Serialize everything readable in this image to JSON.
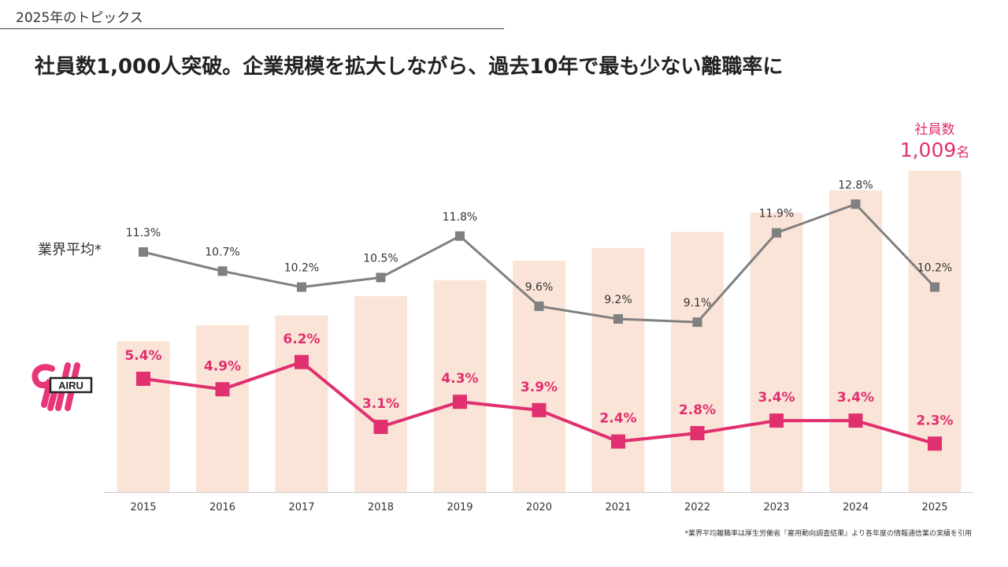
{
  "header": {
    "topic": "2025年のトピックス",
    "headline": "社員数1,000人突破。企業規模を拡大しながら、過去10年で最も少ない離職率に"
  },
  "footnote": "*業界平均離職率は厚生労働省『雇用動向調査結果』より各年度の情報通信業の実績を引用",
  "logo": {
    "text": "AIRU",
    "color": "#e8357a"
  },
  "colors": {
    "bar": "#fae4d7",
    "company_line": "#e0306f",
    "industry_line": "#808080",
    "axis": "#cccccc"
  },
  "chart_data": {
    "type": "bar+line",
    "categories": [
      "2015",
      "2016",
      "2017",
      "2018",
      "2019",
      "2020",
      "2021",
      "2022",
      "2023",
      "2024",
      "2025"
    ],
    "bar_series": {
      "name": "社員数",
      "values": [
        null,
        null,
        null,
        null,
        null,
        null,
        null,
        null,
        null,
        null,
        1009
      ],
      "relative_heights": [
        0.47,
        0.52,
        0.55,
        0.61,
        0.66,
        0.72,
        0.76,
        0.81,
        0.87,
        0.94,
        1.0
      ],
      "last_label_title": "社員数",
      "last_label_value": "1,009",
      "last_label_unit": "名"
    },
    "series": [
      {
        "name": "業界平均*",
        "values": [
          11.3,
          10.7,
          10.2,
          10.5,
          11.8,
          9.6,
          9.2,
          9.1,
          11.9,
          12.8,
          10.2
        ],
        "labels": [
          "11.3%",
          "10.7%",
          "10.2%",
          "10.5%",
          "11.8%",
          "9.6%",
          "9.2%",
          "9.1%",
          "11.9%",
          "12.8%",
          "10.2%"
        ]
      },
      {
        "name": "",
        "values": [
          5.4,
          4.9,
          6.2,
          3.1,
          4.3,
          3.9,
          2.4,
          2.8,
          3.4,
          3.4,
          2.3
        ],
        "labels": [
          "5.4%",
          "4.9%",
          "6.2%",
          "3.1%",
          "4.3%",
          "3.9%",
          "2.4%",
          "2.8%",
          "3.4%",
          "3.4%",
          "2.3%"
        ]
      }
    ],
    "xlabel": "",
    "ylabel": "",
    "grid": false
  }
}
